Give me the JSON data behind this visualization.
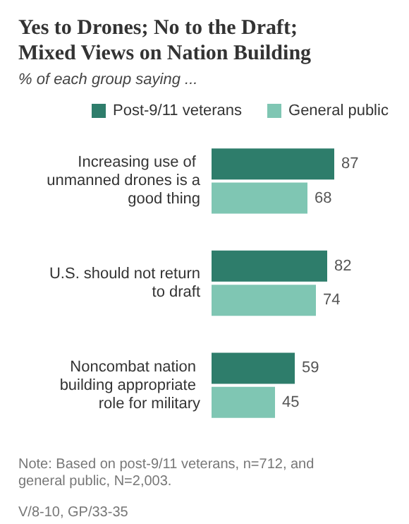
{
  "chart_data": {
    "type": "bar",
    "orientation": "horizontal",
    "title": "Yes to Drones; No to the Draft; Mixed Views on Nation Building",
    "subtitle": "% of each group saying ...",
    "categories": [
      "Increasing use of unmanned drones is a good thing",
      "U.S. should not return to draft",
      "Noncombat nation building appropriate role for military"
    ],
    "series": [
      {
        "name": "Post-9/11 veterans",
        "color": "#2e7d6b",
        "values": [
          87,
          82,
          59
        ]
      },
      {
        "name": "General public",
        "color": "#7fc6b3",
        "values": [
          68,
          74,
          45
        ]
      }
    ],
    "data_labels": true,
    "legend": "top",
    "grid": false,
    "annotations": [
      "Note: Based on post-9/11 veterans, n=712, and general public, N=2,003.",
      "V/8-10, GP/33-35"
    ]
  }
}
